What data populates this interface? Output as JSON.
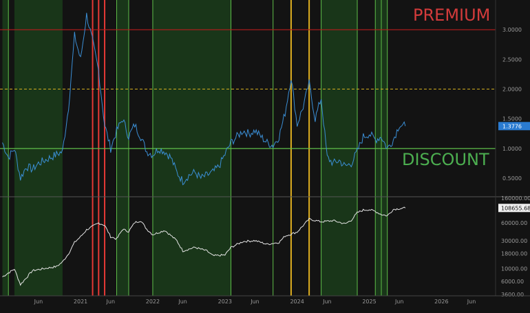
{
  "chart_data": {
    "type": "line",
    "annotations": {
      "premium": "PREMIUM",
      "discount": "DISCOUNT"
    },
    "x_ticks": [
      {
        "label": "Jun",
        "date": "2020-06"
      },
      {
        "label": "2021",
        "date": "2021-01"
      },
      {
        "label": "Jun",
        "date": "2021-06"
      },
      {
        "label": "2022",
        "date": "2022-01"
      },
      {
        "label": "Jun",
        "date": "2022-06"
      },
      {
        "label": "2023",
        "date": "2023-01"
      },
      {
        "label": "Jun",
        "date": "2023-06"
      },
      {
        "label": "2024",
        "date": "2024-01"
      },
      {
        "label": "Jun",
        "date": "2024-06"
      },
      {
        "label": "2025",
        "date": "2025-01"
      },
      {
        "label": "Jun",
        "date": "2025-06"
      },
      {
        "label": "2026",
        "date": "2026-01"
      },
      {
        "label": "Jun",
        "date": "2026-06"
      }
    ],
    "upper_panel": {
      "y_range": [
        0.2,
        3.5
      ],
      "y_ticks": [
        "3.5000",
        "3.0000",
        "2.5000",
        "2.0000",
        "1.5000",
        "1.0000",
        "0.5000"
      ],
      "premium_line": 3.0,
      "dashed_line": 2.0,
      "discount_line": 1.0,
      "last_value": "1.3776",
      "series": [
        {
          "color": "#3b8fd6",
          "points": [
            [
              "2019-12",
              1.1
            ],
            [
              "2020-01",
              0.85
            ],
            [
              "2020-02",
              1.0
            ],
            [
              "2020-03",
              0.5
            ],
            [
              "2020-04",
              0.7
            ],
            [
              "2020-05",
              0.65
            ],
            [
              "2020-06",
              0.75
            ],
            [
              "2020-07",
              0.8
            ],
            [
              "2020-08",
              0.85
            ],
            [
              "2020-09",
              0.9
            ],
            [
              "2020-10",
              0.95
            ],
            [
              "2020-11",
              1.7
            ],
            [
              "2020-12",
              2.9
            ],
            [
              "2021-01",
              2.5
            ],
            [
              "2021-02",
              3.25
            ],
            [
              "2021-03",
              2.8
            ],
            [
              "2021-04",
              2.3
            ],
            [
              "2021-05",
              1.4
            ],
            [
              "2021-06",
              1.0
            ],
            [
              "2021-07",
              1.3
            ],
            [
              "2021-08",
              1.5
            ],
            [
              "2021-09",
              1.2
            ],
            [
              "2021-10",
              1.4
            ],
            [
              "2021-11",
              1.2
            ],
            [
              "2021-12",
              0.95
            ],
            [
              "2022-01",
              0.9
            ],
            [
              "2022-02",
              1.0
            ],
            [
              "2022-03",
              0.95
            ],
            [
              "2022-04",
              0.85
            ],
            [
              "2022-05",
              0.6
            ],
            [
              "2022-06",
              0.45
            ],
            [
              "2022-07",
              0.55
            ],
            [
              "2022-08",
              0.6
            ],
            [
              "2022-09",
              0.5
            ],
            [
              "2022-10",
              0.55
            ],
            [
              "2022-11",
              0.6
            ],
            [
              "2022-12",
              0.7
            ],
            [
              "2023-01",
              0.9
            ],
            [
              "2023-02",
              1.1
            ],
            [
              "2023-03",
              1.2
            ],
            [
              "2023-04",
              1.3
            ],
            [
              "2023-05",
              1.25
            ],
            [
              "2023-06",
              1.3
            ],
            [
              "2023-07",
              1.2
            ],
            [
              "2023-08",
              1.1
            ],
            [
              "2023-09",
              1.05
            ],
            [
              "2023-10",
              1.2
            ],
            [
              "2023-11",
              1.6
            ],
            [
              "2023-12",
              2.2
            ],
            [
              "2024-01",
              1.4
            ],
            [
              "2024-02",
              1.7
            ],
            [
              "2024-03",
              2.1
            ],
            [
              "2024-04",
              1.5
            ],
            [
              "2024-05",
              1.85
            ],
            [
              "2024-06",
              0.85
            ],
            [
              "2024-07",
              0.75
            ],
            [
              "2024-08",
              0.8
            ],
            [
              "2024-09",
              0.7
            ],
            [
              "2024-10",
              0.75
            ],
            [
              "2024-11",
              0.95
            ],
            [
              "2024-12",
              1.2
            ],
            [
              "2025-01",
              1.25
            ],
            [
              "2025-02",
              1.15
            ],
            [
              "2025-03",
              1.2
            ],
            [
              "2025-04",
              1.0
            ],
            [
              "2025-05",
              1.15
            ],
            [
              "2025-06",
              1.4
            ],
            [
              "2025-07",
              1.3776
            ]
          ]
        }
      ]
    },
    "lower_panel": {
      "scale": "log",
      "y_range": [
        3600,
        160000
      ],
      "y_ticks": [
        "160000.00",
        "60000.00",
        "30000.00",
        "18000.00",
        "10000.00",
        "6000.00",
        "3600.00"
      ],
      "last_value": "108655.68",
      "series": [
        {
          "color": "#e6e6e6",
          "points": [
            [
              "2019-12",
              7200
            ],
            [
              "2020-02",
              9800
            ],
            [
              "2020-03",
              5300
            ],
            [
              "2020-05",
              9200
            ],
            [
              "2020-07",
              10000
            ],
            [
              "2020-09",
              10800
            ],
            [
              "2020-10",
              13000
            ],
            [
              "2020-11",
              18000
            ],
            [
              "2020-12",
              28000
            ],
            [
              "2021-01",
              35000
            ],
            [
              "2021-02",
              46000
            ],
            [
              "2021-04",
              60000
            ],
            [
              "2021-05",
              55000
            ],
            [
              "2021-06",
              35000
            ],
            [
              "2021-07",
              32000
            ],
            [
              "2021-08",
              47000
            ],
            [
              "2021-09",
              43000
            ],
            [
              "2021-10",
              61000
            ],
            [
              "2021-11",
              66000
            ],
            [
              "2021-12",
              47000
            ],
            [
              "2022-01",
              38000
            ],
            [
              "2022-03",
              45000
            ],
            [
              "2022-05",
              30000
            ],
            [
              "2022-06",
              20000
            ],
            [
              "2022-08",
              23000
            ],
            [
              "2022-10",
              20000
            ],
            [
              "2022-11",
              16500
            ],
            [
              "2023-01",
              17000
            ],
            [
              "2023-02",
              23000
            ],
            [
              "2023-04",
              29000
            ],
            [
              "2023-06",
              30000
            ],
            [
              "2023-08",
              26000
            ],
            [
              "2023-10",
              28000
            ],
            [
              "2023-11",
              36000
            ],
            [
              "2024-01",
              42000
            ],
            [
              "2024-03",
              70000
            ],
            [
              "2024-05",
              63000
            ],
            [
              "2024-07",
              66000
            ],
            [
              "2024-09",
              58000
            ],
            [
              "2024-10",
              67000
            ],
            [
              "2024-11",
              90000
            ],
            [
              "2024-12",
              100000
            ],
            [
              "2025-01",
              102000
            ],
            [
              "2025-02",
              95000
            ],
            [
              "2025-03",
              84000
            ],
            [
              "2025-04",
              80000
            ],
            [
              "2025-05",
              103000
            ],
            [
              "2025-06",
              106000
            ],
            [
              "2025-07",
              108655.68
            ]
          ]
        }
      ]
    },
    "regions": {
      "green_zones": [
        [
          "2019-12",
          "2020-01"
        ],
        [
          "2020-02",
          "2020-10"
        ],
        [
          "2021-07",
          "2021-09"
        ],
        [
          "2022-01",
          "2023-02"
        ],
        [
          "2024-05",
          "2024-11"
        ],
        [
          "2025-02",
          "2025-04"
        ]
      ],
      "red_lines": [
        "2021-03",
        "2021-04",
        "2021-05"
      ],
      "yellow_lines": [
        "2023-12",
        "2024-03"
      ],
      "green_lines": [
        "2020-01",
        "2021-07",
        "2021-09",
        "2022-01",
        "2023-02",
        "2023-09",
        "2024-05",
        "2024-11",
        "2025-02",
        "2025-03",
        "2025-04"
      ],
      "green_color": "#1b3d1b",
      "line_green": "#5fbf4a",
      "line_red": "#e53935",
      "line_yellow": "#e0b020"
    }
  }
}
